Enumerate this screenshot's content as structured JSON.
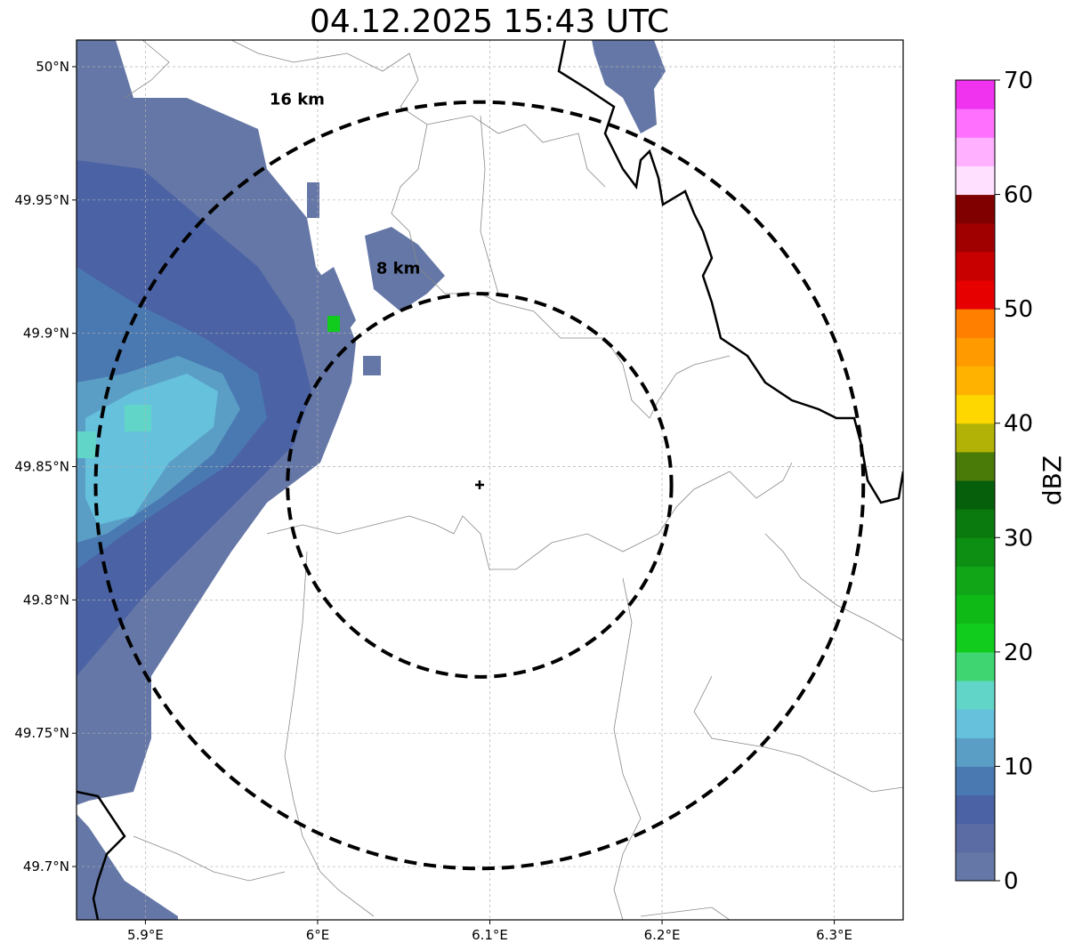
{
  "title": "04.12.2025 15:43 UTC",
  "map": {
    "lon_range": [
      5.86,
      6.34
    ],
    "lat_range": [
      49.68,
      50.01
    ],
    "x_ticks": [
      {
        "value": 5.9,
        "label": "5.9°E"
      },
      {
        "value": 6.0,
        "label": "6°E"
      },
      {
        "value": 6.1,
        "label": "6.1°E"
      },
      {
        "value": 6.2,
        "label": "6.2°E"
      },
      {
        "value": 6.3,
        "label": "6.3°E"
      }
    ],
    "y_ticks": [
      {
        "value": 50.0,
        "label": "50°N"
      },
      {
        "value": 49.95,
        "label": "49.95°N"
      },
      {
        "value": 49.9,
        "label": "49.9°N"
      },
      {
        "value": 49.85,
        "label": "49.85°N"
      },
      {
        "value": 49.8,
        "label": "49.8°N"
      },
      {
        "value": 49.75,
        "label": "49.75°N"
      },
      {
        "value": 49.7,
        "label": "49.7°N"
      }
    ],
    "grid": true,
    "center": {
      "lon": 6.094,
      "lat": 49.843
    },
    "rings": [
      {
        "label": "8 km",
        "radius_km": 8
      },
      {
        "label": "16 km",
        "radius_km": 16
      }
    ]
  },
  "colorbar": {
    "label": "dBZ",
    "min": 0,
    "max": 70,
    "step": 2.5,
    "ticks": [
      {
        "value": 0,
        "label": "0"
      },
      {
        "value": 10,
        "label": "10"
      },
      {
        "value": 20,
        "label": "20"
      },
      {
        "value": 30,
        "label": "30"
      },
      {
        "value": 40,
        "label": "40"
      },
      {
        "value": 50,
        "label": "50"
      },
      {
        "value": 60,
        "label": "60"
      },
      {
        "value": 70,
        "label": "70"
      }
    ],
    "colors": [
      "#6577a6",
      "#5a6ca3",
      "#4b63a5",
      "#4a79b1",
      "#5a9ec6",
      "#66c1dd",
      "#61d6c8",
      "#3fd671",
      "#12cc1d",
      "#0fba17",
      "#10a617",
      "#0c8f12",
      "#0b7a0e",
      "#065f0a",
      "#4a7a08",
      "#b2b206",
      "#ffd700",
      "#ffb300",
      "#ff9a00",
      "#ff7f00",
      "#e60000",
      "#c80000",
      "#a00000",
      "#800000",
      "#ffe0ff",
      "#ffb0ff",
      "#ff70ff",
      "#ef33ef"
    ]
  }
}
